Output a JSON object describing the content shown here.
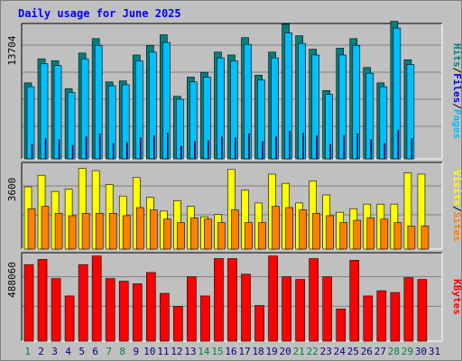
{
  "chart_data": {
    "type": "bar",
    "title": "Daily usage for June 2025",
    "colors": {
      "hits": "#008080",
      "files": "#00c0ff",
      "pages": "#0000ff",
      "visits": "#ffff00",
      "sites": "#ff8000",
      "kbytes": "#ff0000",
      "weekend_day": "#008040",
      "weekday": "#000080",
      "background": "#c0c0c0",
      "gridline": "#808080"
    },
    "x": [
      "1",
      "2",
      "3",
      "4",
      "5",
      "6",
      "7",
      "8",
      "9",
      "10",
      "11",
      "12",
      "13",
      "14",
      "15",
      "16",
      "17",
      "18",
      "19",
      "20",
      "21",
      "22",
      "23",
      "24",
      "25",
      "26",
      "27",
      "28",
      "29",
      "30",
      "31"
    ],
    "weekend_days": [
      "1",
      "7",
      "8",
      "14",
      "15",
      "21",
      "22",
      "28",
      "29"
    ],
    "panels": [
      {
        "name": "hits-files-pages",
        "ymax_label": "13704",
        "ylim": [
          0,
          13704
        ],
        "legend": [
          {
            "text": "Hits",
            "color": "#008080"
          },
          {
            "text": "/",
            "color": "#000000"
          },
          {
            "text": "Files",
            "color": "#0000ff"
          },
          {
            "text": "/",
            "color": "#000000"
          },
          {
            "text": "Pages",
            "color": "#00c0ff"
          }
        ],
        "series": [
          {
            "name": "Hits",
            "color": "#008080",
            "values": [
              7900,
              10400,
              10200,
              7300,
              11000,
              12500,
              8000,
              8100,
              10800,
              11800,
              12900,
              6500,
              8500,
              9000,
              11100,
              10800,
              12600,
              8700,
              11100,
              14000,
              12800,
              11400,
              7100,
              11500,
              12500,
              9500,
              7900,
              14300,
              10300,
              null,
              null
            ]
          },
          {
            "name": "Files",
            "color": "#00c0ff",
            "values": [
              7500,
              9900,
              9700,
              6900,
              10400,
              11800,
              7600,
              7700,
              10200,
              11100,
              12100,
              6200,
              8000,
              8500,
              10500,
              10200,
              11900,
              8200,
              10500,
              13100,
              12000,
              10800,
              6700,
              10800,
              11800,
              8900,
              7500,
              13600,
              9800,
              null,
              null
            ]
          },
          {
            "name": "Pages",
            "color": "#0000ff",
            "values": [
              1500,
              2100,
              2000,
              1400,
              2300,
              2600,
              1600,
              1700,
              2200,
              2400,
              2700,
              1300,
              1800,
              1900,
              2300,
              2200,
              2600,
              1800,
              2300,
              2900,
              2700,
              2400,
              1500,
              2400,
              2600,
              2000,
              1600,
              3000,
              2100,
              null,
              null
            ]
          }
        ]
      },
      {
        "name": "visits-sites",
        "ymax_label": "3600",
        "ylim": [
          0,
          3600
        ],
        "legend": [
          {
            "text": "Visits",
            "color": "#ffff00"
          },
          {
            "text": "/",
            "color": "#000000"
          },
          {
            "text": "Sites",
            "color": "#ff8000"
          }
        ],
        "series": [
          {
            "name": "Visits",
            "color": "#ffff00",
            "values": [
              2700,
              3200,
              2500,
              2600,
              3500,
              3400,
              2800,
              2300,
              3100,
              2250,
              1650,
              2100,
              1850,
              1400,
              1500,
              3450,
              2550,
              2000,
              3250,
              2850,
              2000,
              2950,
              2350,
              1600,
              1750,
              1950,
              1950,
              1950,
              3300,
              3250,
              null
            ]
          },
          {
            "name": "Sites",
            "color": "#ff8000",
            "values": [
              1750,
              1850,
              1550,
              1450,
              1550,
              1550,
              1550,
              1450,
              1800,
              1700,
              1300,
              1150,
              1350,
              1300,
              1150,
              1700,
              1150,
              1150,
              1850,
              1800,
              1700,
              1550,
              1450,
              1150,
              1250,
              1350,
              1300,
              1150,
              1000,
              1000,
              null
            ]
          }
        ]
      },
      {
        "name": "kbytes",
        "ymax_label": "488060",
        "ylim": [
          0,
          488060
        ],
        "legend": [
          {
            "text": "KBytes",
            "color": "#ff0000"
          }
        ],
        "series": [
          {
            "name": "KBytes",
            "color": "#ff0000",
            "values": [
              440000,
              470000,
              360000,
              260000,
              440000,
              490000,
              360000,
              345000,
              330000,
              395000,
              275000,
              200000,
              370000,
              260000,
              475000,
              475000,
              385000,
              205000,
              490000,
              370000,
              355000,
              475000,
              370000,
              185000,
              465000,
              260000,
              290000,
              280000,
              365000,
              355000,
              null
            ]
          }
        ]
      }
    ]
  }
}
